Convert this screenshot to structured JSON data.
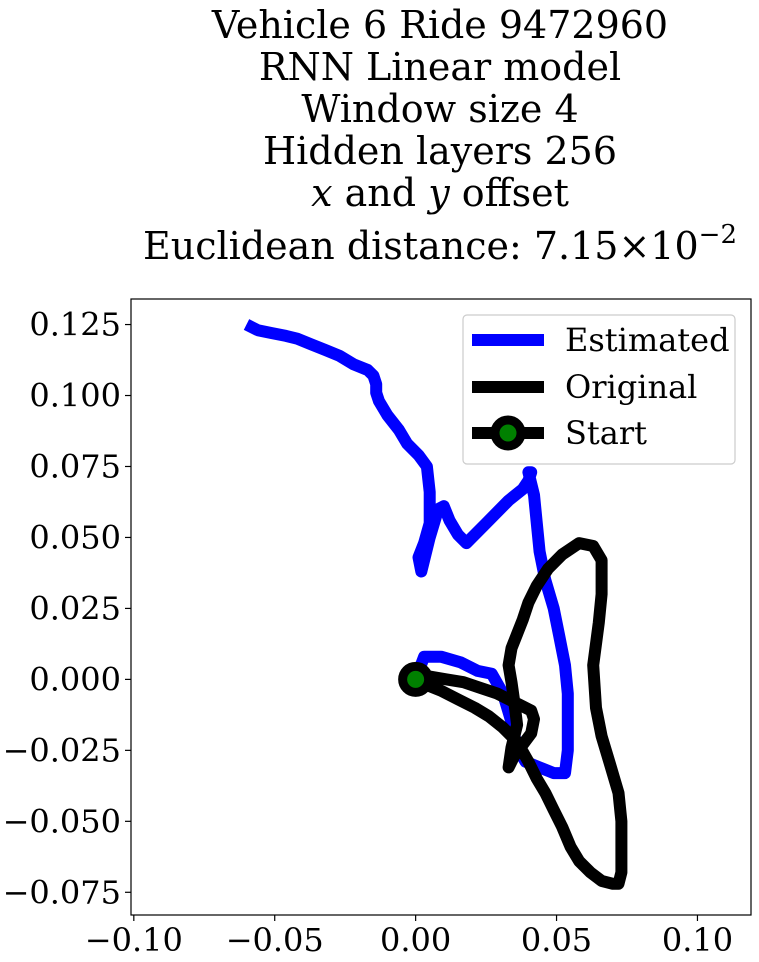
{
  "chart_data": {
    "type": "line",
    "title_lines": [
      "Vehicle 6 Ride 9472960",
      "RNN Linear model",
      "Window size 4",
      "Hidden layers 256"
    ],
    "title_math_line": {
      "x": "x",
      "mid": "and",
      "y": "y",
      "rest": "offset"
    },
    "title_exp_line": {
      "text": "Euclidean distance: 7.15×10",
      "exponent": "−2"
    },
    "xlim": [
      -0.101,
      0.119
    ],
    "ylim": [
      -0.083,
      0.134
    ],
    "xticks": [
      -0.1,
      -0.05,
      0.0,
      0.05,
      0.1
    ],
    "xtick_labels": [
      "−0.10",
      "−0.05",
      "0.00",
      "0.05",
      "0.10"
    ],
    "yticks": [
      0.125,
      0.1,
      0.075,
      0.05,
      0.025,
      0.0,
      -0.025,
      -0.05,
      -0.075
    ],
    "ytick_labels": [
      "0.125",
      "0.100",
      "0.075",
      "0.050",
      "0.025",
      "0.000",
      "−0.025",
      "−0.050",
      "−0.075"
    ],
    "legend_position": "top-right",
    "series": [
      {
        "name": "Estimated",
        "color": "#0000ff",
        "x": [
          0.0,
          0.003,
          0.009,
          0.016,
          0.022,
          0.027,
          0.031,
          0.034,
          0.036,
          0.039,
          0.044,
          0.049,
          0.053,
          0.054,
          0.054,
          0.054,
          0.053,
          0.051,
          0.049,
          0.046,
          0.044,
          0.043,
          0.042,
          0.04,
          0.041,
          0.04,
          0.038,
          0.033,
          0.025,
          0.018,
          0.015,
          0.012,
          0.01,
          0.008,
          0.005,
          0.003,
          0.002,
          0.001,
          0.003,
          0.005,
          0.005,
          0.004,
          0.001,
          -0.003,
          -0.006,
          -0.01,
          -0.013,
          -0.014,
          -0.014,
          -0.015,
          -0.017,
          -0.022,
          -0.027,
          -0.032,
          -0.037,
          -0.042,
          -0.046,
          -0.051,
          -0.056,
          -0.06
        ],
        "y": [
          0.0,
          0.008,
          0.008,
          0.006,
          0.003,
          0.002,
          -0.005,
          -0.015,
          -0.024,
          -0.029,
          -0.031,
          -0.033,
          -0.033,
          -0.025,
          -0.015,
          -0.005,
          0.005,
          0.015,
          0.025,
          0.035,
          0.045,
          0.055,
          0.065,
          0.073,
          0.073,
          0.07,
          0.067,
          0.063,
          0.055,
          0.048,
          0.051,
          0.056,
          0.061,
          0.06,
          0.05,
          0.042,
          0.038,
          0.043,
          0.048,
          0.055,
          0.066,
          0.075,
          0.079,
          0.083,
          0.088,
          0.093,
          0.098,
          0.101,
          0.104,
          0.107,
          0.109,
          0.111,
          0.114,
          0.116,
          0.118,
          0.12,
          0.121,
          0.122,
          0.123,
          0.125
        ]
      },
      {
        "name": "Original",
        "color": "#000000",
        "x": [
          0.0,
          0.005,
          0.011,
          0.017,
          0.023,
          0.029,
          0.033,
          0.037,
          0.041,
          0.042,
          0.041,
          0.038,
          0.035,
          0.033,
          0.034,
          0.036,
          0.035,
          0.034,
          0.033,
          0.034,
          0.036,
          0.038,
          0.04,
          0.043,
          0.047,
          0.052,
          0.058,
          0.063,
          0.066,
          0.066,
          0.065,
          0.063,
          0.064,
          0.066,
          0.069,
          0.072,
          0.073,
          0.073,
          0.073,
          0.072,
          0.07,
          0.066,
          0.062,
          0.058,
          0.055,
          0.052,
          0.049,
          0.046,
          0.043,
          0.04,
          0.036,
          0.031,
          0.026,
          0.021,
          0.015,
          0.009,
          0.004,
          0.0
        ],
        "y": [
          0.0,
          0.001,
          0.0,
          -0.001,
          -0.003,
          -0.005,
          -0.007,
          -0.009,
          -0.011,
          -0.014,
          -0.019,
          -0.023,
          -0.027,
          -0.031,
          -0.024,
          -0.016,
          -0.008,
          -0.001,
          0.005,
          0.011,
          0.016,
          0.021,
          0.027,
          0.033,
          0.039,
          0.044,
          0.048,
          0.047,
          0.042,
          0.03,
          0.02,
          0.005,
          -0.01,
          -0.02,
          -0.03,
          -0.04,
          -0.05,
          -0.06,
          -0.068,
          -0.072,
          -0.072,
          -0.071,
          -0.068,
          -0.064,
          -0.059,
          -0.052,
          -0.046,
          -0.04,
          -0.035,
          -0.029,
          -0.022,
          -0.017,
          -0.013,
          -0.01,
          -0.007,
          -0.004,
          -0.002,
          0.0
        ]
      },
      {
        "name": "Start",
        "color": "#000000",
        "marker_face": "#008000",
        "x": [
          0.0
        ],
        "y": [
          0.0
        ]
      }
    ]
  }
}
